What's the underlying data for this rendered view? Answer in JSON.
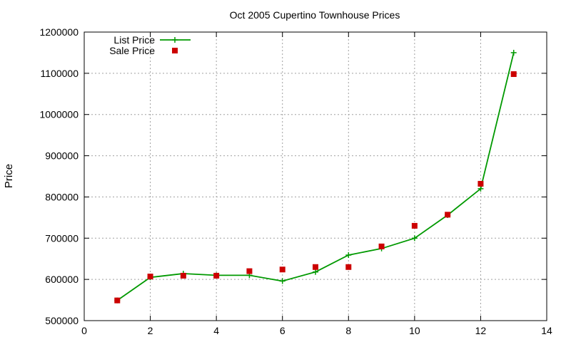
{
  "chart_data": {
    "type": "line",
    "title": "Oct 2005 Cupertino Townhouse Prices",
    "xlabel": "",
    "ylabel": "Price",
    "xlim": [
      0,
      14
    ],
    "ylim": [
      500000,
      1200000
    ],
    "x_ticks": [
      0,
      2,
      4,
      6,
      8,
      10,
      12,
      14
    ],
    "y_ticks": [
      500000,
      600000,
      700000,
      800000,
      900000,
      1000000,
      1100000,
      1200000
    ],
    "grid": true,
    "legend_position": "top-left",
    "series": [
      {
        "name": "List Price",
        "style": "lines+points",
        "marker": "plus",
        "color": "#009900",
        "x": [
          1,
          2,
          3,
          4,
          5,
          6,
          7,
          8,
          9,
          10,
          11,
          12,
          13
        ],
        "y": [
          549000,
          605000,
          614000,
          610000,
          610000,
          596000,
          618000,
          659000,
          675000,
          700000,
          756000,
          820000,
          1150000
        ]
      },
      {
        "name": "Sale Price",
        "style": "points",
        "marker": "square",
        "color": "#cc0000",
        "x": [
          1,
          2,
          3,
          4,
          5,
          6,
          7,
          8,
          9,
          10,
          11,
          12,
          13
        ],
        "y": [
          549000,
          607000,
          609000,
          609000,
          620000,
          624000,
          630000,
          630000,
          680000,
          730000,
          757000,
          832000,
          1098000
        ]
      }
    ]
  }
}
